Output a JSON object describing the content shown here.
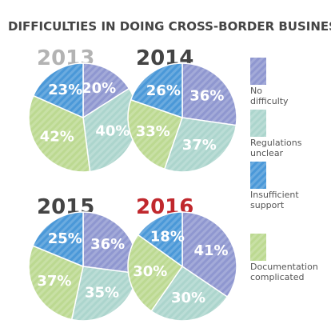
{
  "title": "DIFFICULTIES IN DOING CROSS-BORDER BUSINESS IN RMB",
  "legend": {
    "labels": [
      "No difficulty",
      "Regulations unclear",
      "Insufficient support",
      "Documentation complicated"
    ],
    "colors": [
      "#8f97d0",
      "#acd5cd",
      "#4a98d8",
      "#bcd991"
    ]
  },
  "chart_data": [
    {
      "type": "pie",
      "title": "2013",
      "title_color": "#b3b3b3",
      "values": [
        20,
        40,
        23,
        42
      ],
      "value_labels": [
        "20%",
        "40%",
        "23%",
        "42%"
      ]
    },
    {
      "type": "pie",
      "title": "2014",
      "title_color": "#444444",
      "values": [
        36,
        37,
        26,
        33
      ],
      "value_labels": [
        "36%",
        "37%",
        "26%",
        "33%"
      ]
    },
    {
      "type": "pie",
      "title": "2015",
      "title_color": "#444444",
      "values": [
        36,
        35,
        25,
        37
      ],
      "value_labels": [
        "36%",
        "35%",
        "25%",
        "37%"
      ]
    },
    {
      "type": "pie",
      "title": "2016",
      "title_color": "#c0282d",
      "values": [
        41,
        30,
        18,
        30
      ],
      "value_labels": [
        "41%",
        "30%",
        "18%",
        "30%"
      ]
    }
  ]
}
